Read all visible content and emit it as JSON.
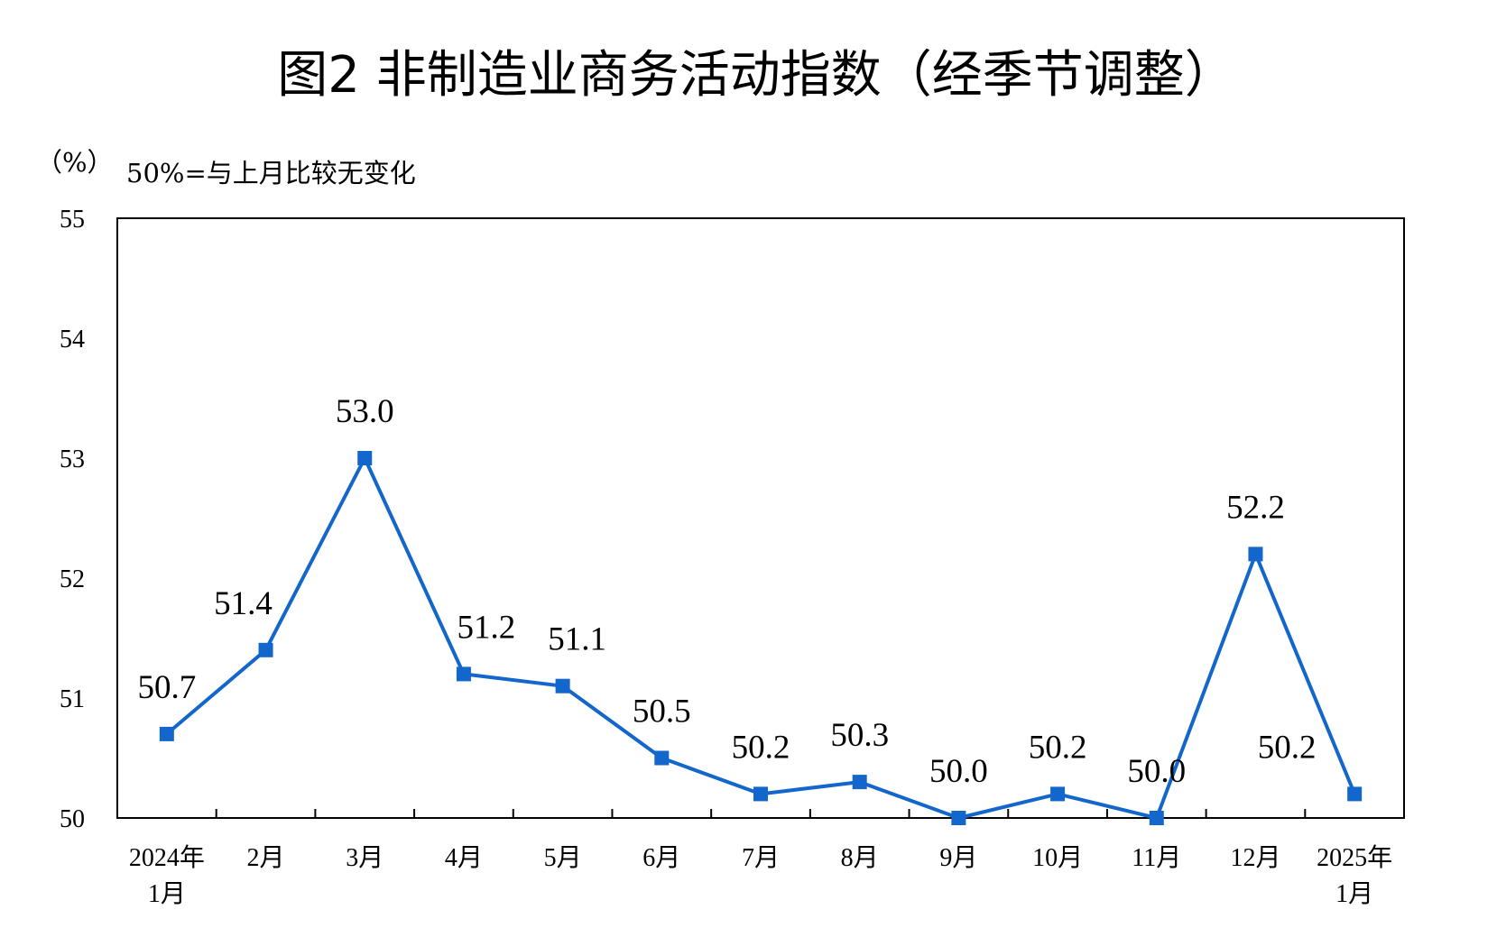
{
  "chart_data": {
    "type": "line",
    "title": "图2  非制造业商务活动指数（经季节调整）",
    "ylabel": "（%）",
    "annotation": "50%=与上月比较无变化",
    "categories": [
      "2024年\n1月",
      "2月",
      "3月",
      "4月",
      "5月",
      "6月",
      "7月",
      "8月",
      "9月",
      "10月",
      "11月",
      "12月",
      "2025年\n1月"
    ],
    "series": [
      {
        "values": [
          50.7,
          51.4,
          53.0,
          51.2,
          51.1,
          50.5,
          50.2,
          50.3,
          50.0,
          50.2,
          50.0,
          52.2,
          50.2
        ],
        "labels": [
          "50.7",
          "51.4",
          "53.0",
          "51.2",
          "51.1",
          "50.5",
          "50.2",
          "50.3",
          "50.0",
          "50.2",
          "50.0",
          "52.2",
          "50.2"
        ],
        "color": "#1366CC"
      }
    ],
    "ylim": [
      50,
      55
    ],
    "yticks": [
      50,
      51,
      52,
      53,
      54,
      55
    ],
    "grid": false,
    "legend": "none"
  }
}
